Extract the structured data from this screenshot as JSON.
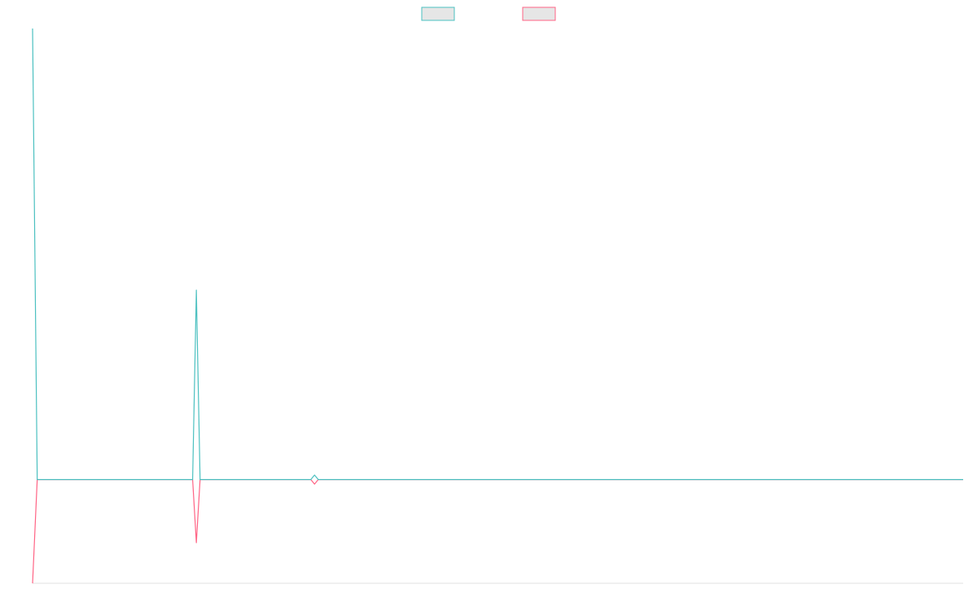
{
  "chart_data": {
    "type": "line",
    "x": [
      0,
      0.5,
      17.2,
      17.6,
      18.0,
      29.9,
      30.3,
      30.7,
      100
    ],
    "series": [
      {
        "color": "#4bc0c0",
        "values": [
          10,
          0,
          0,
          4.2,
          0,
          0,
          0.1,
          0,
          0
        ]
      },
      {
        "color": "#ff6384",
        "values": [
          -2.3,
          0,
          0,
          -1.4,
          0,
          0,
          -0.1,
          0,
          0
        ]
      }
    ],
    "xlim": [
      0,
      100
    ],
    "ylim": [
      -2.3,
      10
    ],
    "grid": false,
    "legend": "top"
  }
}
